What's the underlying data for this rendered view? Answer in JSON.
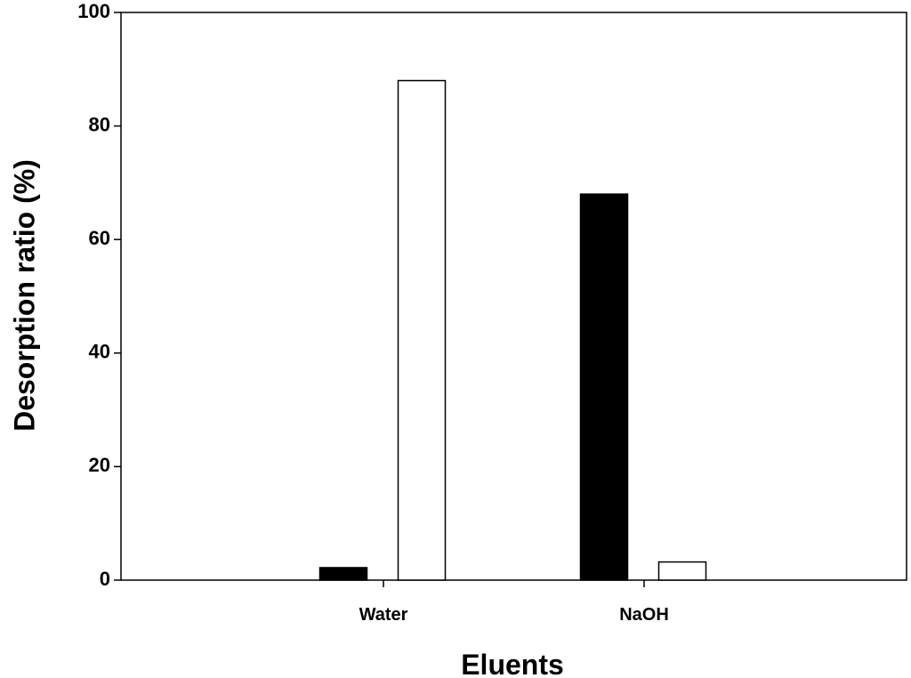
{
  "chart_data": {
    "type": "bar",
    "xlabel": "Eluents",
    "ylabel": "Desorption ratio (%)",
    "ylim": [
      0,
      100
    ],
    "yticks": [
      0,
      20,
      40,
      60,
      80,
      100
    ],
    "categories": [
      "Water",
      "NaOH"
    ],
    "series": [
      {
        "values": [
          2.2,
          68
        ],
        "color": "#000000"
      },
      {
        "values": [
          88,
          3.2
        ],
        "color": "#ffffff"
      }
    ],
    "grid": false,
    "legend": "none"
  }
}
